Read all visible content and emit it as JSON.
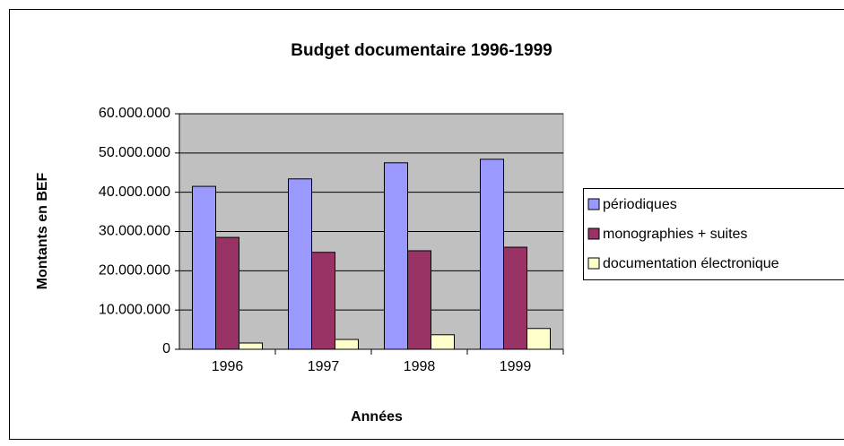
{
  "chart_data": {
    "type": "bar",
    "title": "Budget documentaire 1996-1999",
    "x_label": "Années",
    "y_label": "Montants en BEF",
    "categories": [
      "1996",
      "1997",
      "1998",
      "1999"
    ],
    "series": [
      {
        "name": "périodiques",
        "color": "#9999ff",
        "values": [
          41500000,
          43400000,
          47500000,
          48400000
        ]
      },
      {
        "name": "monographies + suites",
        "color": "#993366",
        "values": [
          28500000,
          24700000,
          25100000,
          26000000
        ]
      },
      {
        "name": "documentation électronique",
        "color": "#ffffcc",
        "values": [
          1600000,
          2500000,
          3700000,
          5300000
        ]
      }
    ],
    "ylim": [
      0,
      60000000
    ],
    "yticks": [
      0,
      {
        "value": 10000000,
        "label": "10.000.000"
      },
      {
        "value": 20000000,
        "label": "20.000.000"
      },
      {
        "value": 30000000,
        "label": "30.000.000"
      },
      {
        "value": 40000000,
        "label": "40.000.000"
      },
      {
        "value": 50000000,
        "label": "50.000.000"
      },
      {
        "value": 60000000,
        "label": "60.000.000"
      }
    ],
    "grid": true,
    "legend_position": "right"
  }
}
